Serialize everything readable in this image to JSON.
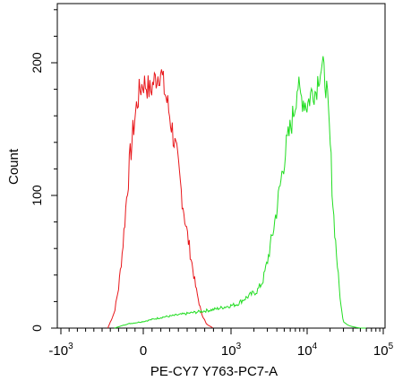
{
  "chart_data": {
    "type": "line",
    "title": "",
    "xlabel": "PE-CY7 Y763-PC7-A",
    "ylabel": "Count",
    "x_scale": "biexponential",
    "xlim_display": [
      -1000,
      100000
    ],
    "ylim": [
      0,
      245
    ],
    "grid": false,
    "legend": "none",
    "x_ticks": [
      {
        "value": -1000,
        "base": "-10",
        "exp": "3"
      },
      {
        "value": 0,
        "base": "0",
        "exp": ""
      },
      {
        "value": 1000,
        "base": "10",
        "exp": "3"
      },
      {
        "value": 10000,
        "base": "10",
        "exp": "4"
      },
      {
        "value": 100000,
        "base": "10",
        "exp": "5"
      }
    ],
    "y_ticks": [
      {
        "value": 0,
        "label": "0"
      },
      {
        "value": 100,
        "label": "100"
      },
      {
        "value": 200,
        "label": "200"
      }
    ],
    "series": [
      {
        "color": "#e8171b",
        "x": [
          -430,
          -350,
          -300,
          -250,
          -200,
          -160,
          -120,
          -80,
          -40,
          0,
          40,
          80,
          120,
          160,
          200,
          240,
          280,
          330,
          380,
          430,
          480,
          540,
          600,
          660,
          720,
          800
        ],
        "y": [
          0,
          12,
          30,
          60,
          100,
          128,
          150,
          168,
          180,
          185,
          183,
          178,
          186,
          190,
          194,
          180,
          168,
          150,
          130,
          105,
          80,
          55,
          30,
          12,
          3,
          0
        ]
      },
      {
        "color": "#22dd22",
        "x": [
          -350,
          -200,
          0,
          200,
          400,
          600,
          800,
          1000,
          1200,
          1500,
          1800,
          2200,
          2600,
          3000,
          3500,
          4000,
          4500,
          5000,
          5500,
          6000,
          6500,
          7000,
          7500,
          8000,
          9000,
          10000,
          11000,
          12000,
          13000,
          14000,
          15000,
          16000,
          17000,
          18000,
          19000,
          20000,
          21000,
          22000,
          24000,
          26000,
          28000,
          30000,
          35000,
          40000,
          50000,
          60000
        ],
        "y": [
          0,
          3,
          5,
          8,
          10,
          12,
          14,
          17,
          18,
          22,
          25,
          28,
          35,
          50,
          70,
          90,
          110,
          128,
          140,
          150,
          160,
          170,
          185,
          175,
          172,
          168,
          175,
          180,
          178,
          190,
          195,
          196,
          190,
          180,
          160,
          140,
          115,
          90,
          60,
          35,
          15,
          5,
          2,
          1,
          0,
          0
        ]
      }
    ]
  }
}
